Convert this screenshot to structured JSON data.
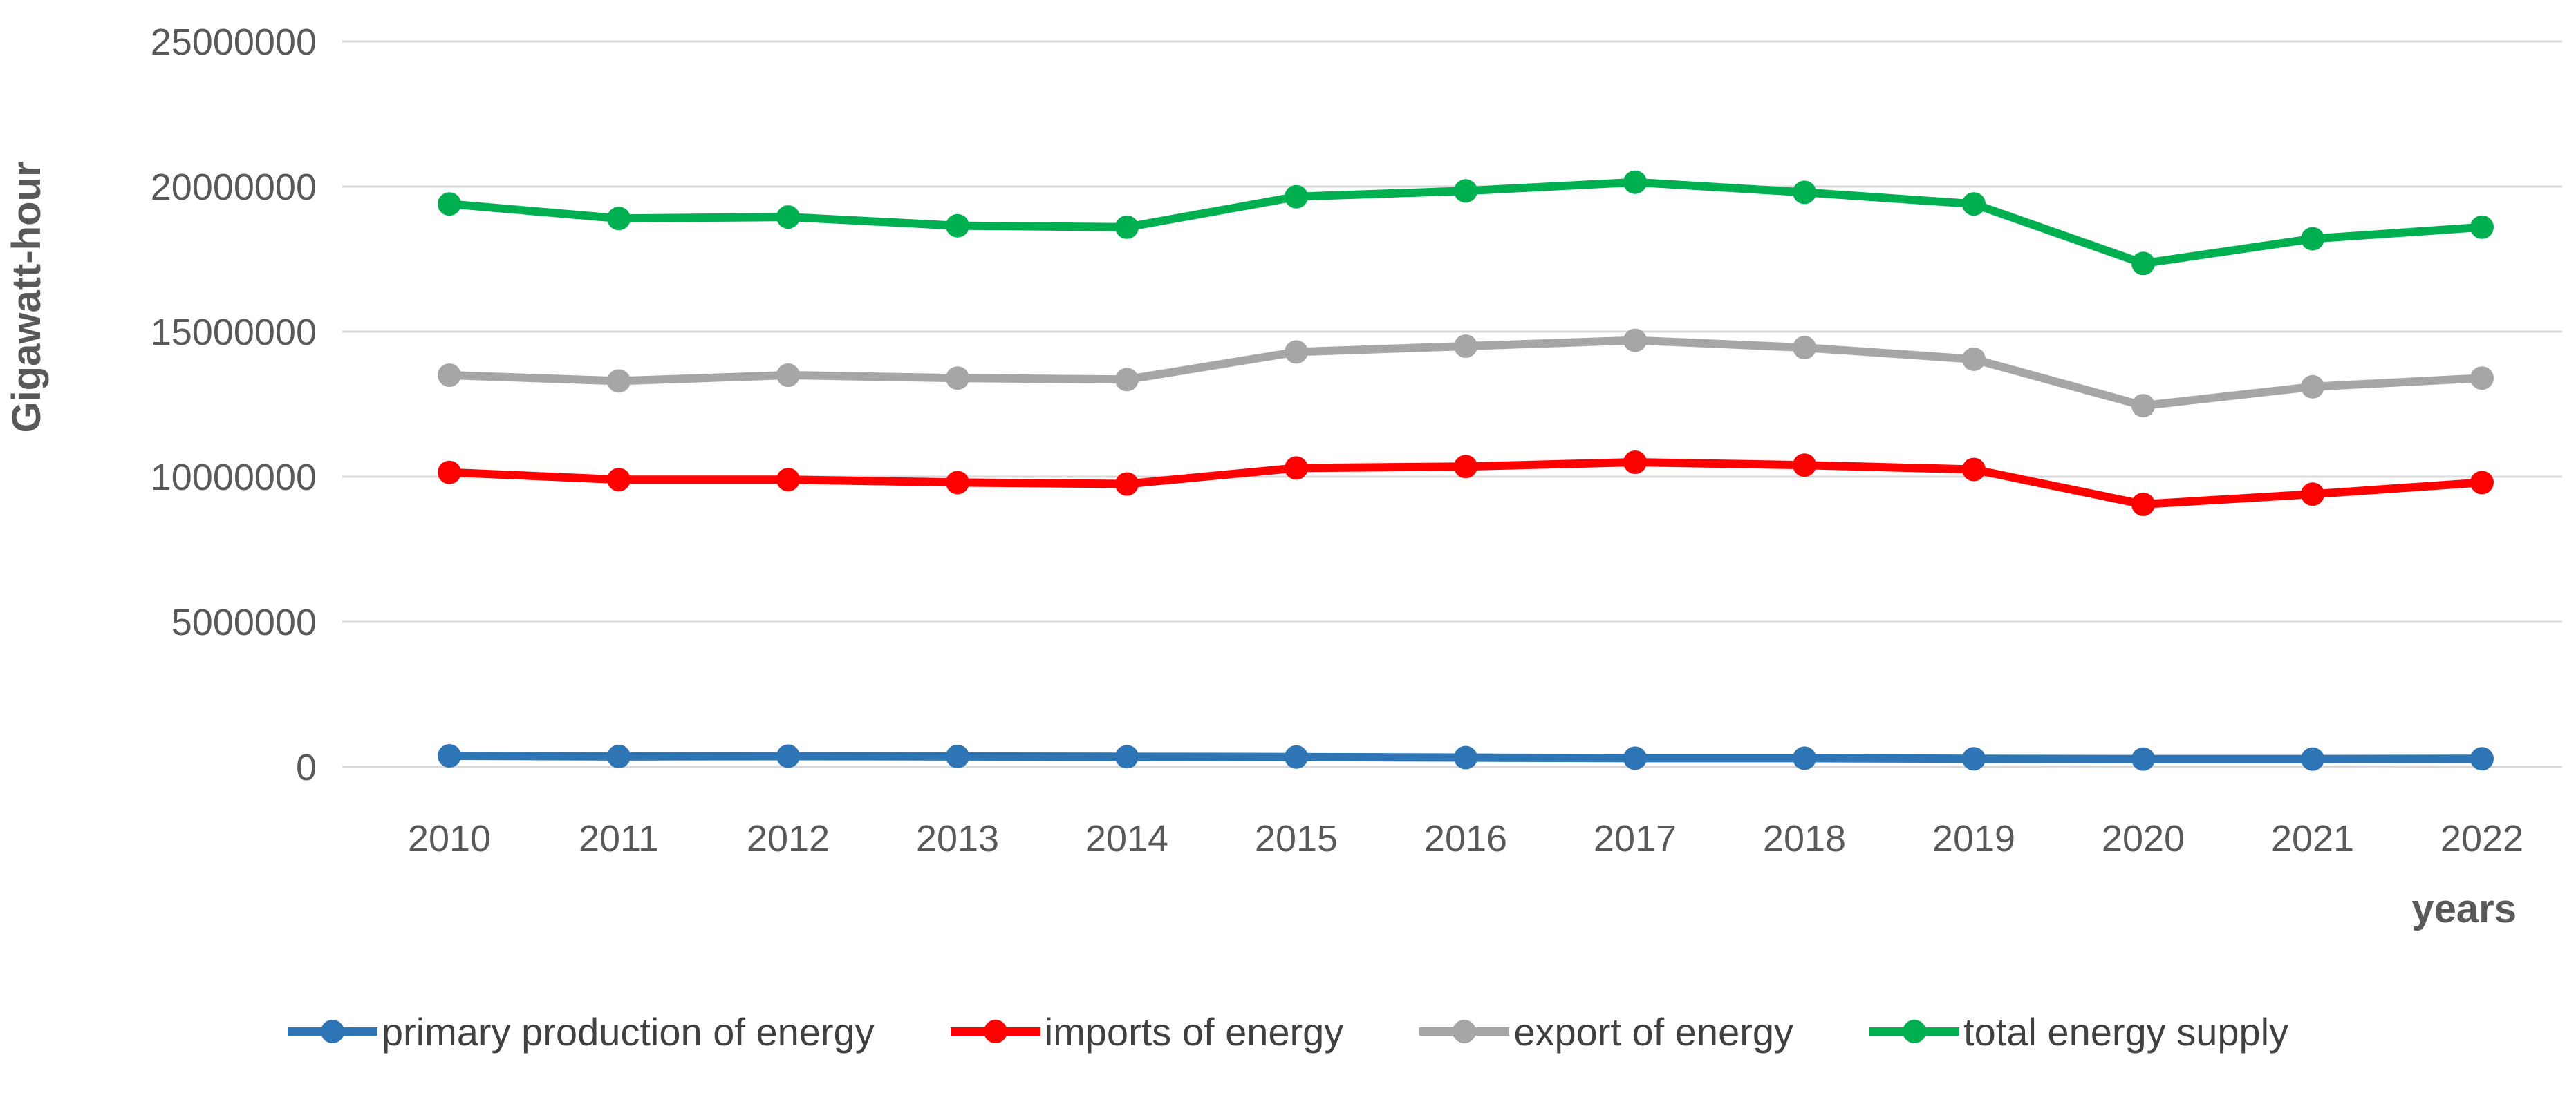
{
  "chart_data": {
    "type": "line",
    "title": "",
    "ylabel": "Gigawatt-hour",
    "xlabel": "years",
    "ylim": [
      0,
      25000000
    ],
    "yticks": [
      0,
      5000000,
      10000000,
      15000000,
      20000000,
      25000000
    ],
    "grid": true,
    "legend_position": "bottom",
    "categories": [
      "2010",
      "2011",
      "2012",
      "2013",
      "2014",
      "2015",
      "2016",
      "2017",
      "2018",
      "2019",
      "2020",
      "2021",
      "2022"
    ],
    "series": [
      {
        "name": "primary production of energy",
        "color": "#2E75B6",
        "values": [
          380000,
          360000,
          370000,
          360000,
          350000,
          340000,
          320000,
          300000,
          300000,
          280000,
          270000,
          270000,
          280000
        ]
      },
      {
        "name": "imports of energy",
        "color": "#FF0000",
        "values": [
          10150000,
          9900000,
          9900000,
          9800000,
          9750000,
          10300000,
          10350000,
          10500000,
          10400000,
          10250000,
          9050000,
          9400000,
          9800000
        ]
      },
      {
        "name": "export of energy",
        "color": "#A6A6A6",
        "values": [
          13500000,
          13300000,
          13500000,
          13400000,
          13350000,
          14300000,
          14500000,
          14700000,
          14450000,
          14050000,
          12450000,
          13100000,
          13400000
        ]
      },
      {
        "name": "total energy supply",
        "color": "#00B050",
        "values": [
          19400000,
          18900000,
          18950000,
          18650000,
          18600000,
          19650000,
          19850000,
          20150000,
          19800000,
          19400000,
          17350000,
          18200000,
          18600000
        ]
      }
    ]
  },
  "colors": {
    "grid": "#D9D9D9",
    "tick_text": "#595959",
    "axis_title_text": "#595959",
    "legend_text": "#404040",
    "background": "#FFFFFF"
  }
}
